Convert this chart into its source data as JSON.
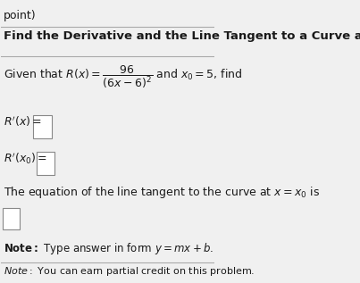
{
  "title": "Find the Derivative and the Line Tangent to a Curve at a Point.",
  "header": "point)",
  "bg_color": "#f0f0f0",
  "box_color": "#ffffff",
  "text_color": "#1a1a1a",
  "border_color": "#cccccc",
  "title_fontsize": 9.5,
  "body_fontsize": 9.0,
  "note_fontsize": 8.5
}
